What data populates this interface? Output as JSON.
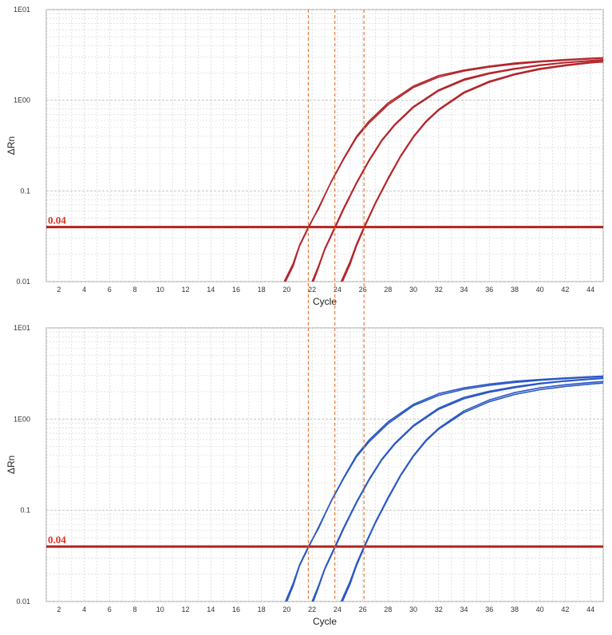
{
  "colors": {
    "threshold": "#b22222",
    "ct_marker": "#e8702a",
    "top_series": "#b3262b",
    "bottom_series": "#2a58c4",
    "grid": "#d3d3d3",
    "plot_border": "#9a9a9a"
  },
  "ct_markers": [
    21.7,
    23.8,
    26.1
  ],
  "chart_data": [
    {
      "type": "line",
      "xlabel": "Cycle",
      "ylabel": "ΔRn",
      "y_scale": "log",
      "xlim": [
        1,
        45
      ],
      "ylim": [
        0.01,
        10
      ],
      "x_ticks": [
        "2",
        "4",
        "6",
        "8",
        "10",
        "12",
        "14",
        "16",
        "18",
        "20",
        "22",
        "24",
        "26",
        "28",
        "30",
        "32",
        "34",
        "36",
        "38",
        "40",
        "42",
        "44"
      ],
      "y_ticks": [
        {
          "value": 10,
          "label": "1E01"
        },
        {
          "value": 1,
          "label": "1E00"
        },
        {
          "value": 0.1,
          "label": "0.1"
        },
        {
          "value": 0.01,
          "label": "0.01"
        }
      ],
      "threshold": {
        "value": 0.04,
        "label": "0.04"
      },
      "grid": true,
      "series_color": "#b3262b",
      "series": [
        {
          "x": [
            19.8,
            20.5,
            21.0,
            21.7,
            22.5,
            23.5,
            24.5,
            25.5,
            26.5,
            28,
            30,
            32,
            34,
            36,
            38,
            40,
            42,
            44,
            45
          ],
          "y": [
            0.01,
            0.0158,
            0.025,
            0.04,
            0.063,
            0.126,
            0.229,
            0.398,
            0.589,
            0.932,
            1.43,
            1.87,
            2.15,
            2.38,
            2.57,
            2.7,
            2.81,
            2.9,
            2.94
          ]
        },
        {
          "x": [
            19.9,
            20.5,
            21.0,
            21.75,
            22.5,
            23.5,
            24.5,
            25.5,
            26.5,
            28,
            30,
            32,
            34,
            36,
            38,
            40,
            42,
            44,
            45
          ],
          "y": [
            0.01,
            0.0148,
            0.0245,
            0.04,
            0.065,
            0.125,
            0.224,
            0.385,
            0.562,
            0.891,
            1.38,
            1.8,
            2.1,
            2.32,
            2.5,
            2.65,
            2.76,
            2.86,
            2.91
          ]
        },
        {
          "x": [
            22.0,
            22.5,
            23.0,
            23.8,
            24.5,
            25.5,
            26.5,
            27.5,
            28.5,
            30,
            32,
            34,
            36,
            38,
            40,
            42,
            44,
            45
          ],
          "y": [
            0.01,
            0.0148,
            0.023,
            0.04,
            0.065,
            0.123,
            0.219,
            0.363,
            0.537,
            0.851,
            1.3,
            1.71,
            2.0,
            2.24,
            2.45,
            2.61,
            2.74,
            2.8
          ]
        },
        {
          "x": [
            22.1,
            22.5,
            23.0,
            23.85,
            24.5,
            25.5,
            26.5,
            27.5,
            28.5,
            30,
            32,
            34,
            36,
            38,
            40,
            42,
            44,
            45
          ],
          "y": [
            0.01,
            0.0142,
            0.0225,
            0.04,
            0.063,
            0.12,
            0.214,
            0.355,
            0.525,
            0.832,
            1.27,
            1.66,
            1.96,
            2.2,
            2.42,
            2.59,
            2.72,
            2.78
          ]
        },
        {
          "x": [
            24.3,
            25.0,
            25.5,
            26.1,
            27.0,
            28.0,
            29.0,
            30.0,
            31.0,
            32,
            34,
            36,
            38,
            40,
            42,
            44,
            45
          ],
          "y": [
            0.01,
            0.0166,
            0.0257,
            0.04,
            0.0741,
            0.138,
            0.245,
            0.398,
            0.589,
            0.794,
            1.23,
            1.62,
            1.95,
            2.24,
            2.45,
            2.63,
            2.7
          ]
        },
        {
          "x": [
            24.4,
            25.0,
            25.5,
            26.15,
            27.0,
            28.0,
            29.0,
            30.0,
            31.0,
            32,
            34,
            36,
            38,
            40,
            42,
            44,
            45
          ],
          "y": [
            0.01,
            0.0155,
            0.0245,
            0.04,
            0.0724,
            0.134,
            0.24,
            0.389,
            0.575,
            0.776,
            1.2,
            1.58,
            1.91,
            2.19,
            2.4,
            2.58,
            2.65
          ]
        }
      ]
    },
    {
      "type": "line",
      "xlabel": "Cycle",
      "ylabel": "ΔRn",
      "y_scale": "log",
      "xlim": [
        1,
        45
      ],
      "ylim": [
        0.01,
        10
      ],
      "x_ticks": [
        "2",
        "4",
        "6",
        "8",
        "10",
        "12",
        "14",
        "16",
        "18",
        "20",
        "22",
        "24",
        "26",
        "28",
        "30",
        "32",
        "34",
        "36",
        "38",
        "40",
        "42",
        "44"
      ],
      "y_ticks": [
        {
          "value": 10,
          "label": "1E01"
        },
        {
          "value": 1,
          "label": "1E00"
        },
        {
          "value": 0.1,
          "label": "0.1"
        },
        {
          "value": 0.01,
          "label": "0.01"
        }
      ],
      "threshold": {
        "value": 0.04,
        "label": "0.04"
      },
      "grid": true,
      "series_color": "#2a58c4",
      "series": [
        {
          "x": [
            19.9,
            20.5,
            21.0,
            21.7,
            22.5,
            23.5,
            24.5,
            25.5,
            26.5,
            28,
            30,
            32,
            34,
            36,
            38,
            40,
            42,
            44,
            45
          ],
          "y": [
            0.01,
            0.0158,
            0.025,
            0.04,
            0.063,
            0.126,
            0.229,
            0.398,
            0.589,
            0.932,
            1.45,
            1.9,
            2.2,
            2.42,
            2.6,
            2.72,
            2.82,
            2.92,
            2.96
          ]
        },
        {
          "x": [
            20.0,
            20.5,
            21.0,
            21.75,
            22.5,
            23.5,
            24.5,
            25.5,
            26.5,
            28,
            30,
            32,
            34,
            36,
            38,
            40,
            42,
            44,
            45
          ],
          "y": [
            0.01,
            0.0148,
            0.0245,
            0.04,
            0.065,
            0.125,
            0.224,
            0.385,
            0.562,
            0.891,
            1.4,
            1.82,
            2.12,
            2.34,
            2.52,
            2.66,
            2.77,
            2.87,
            2.92
          ]
        },
        {
          "x": [
            22.0,
            22.5,
            23.0,
            23.8,
            24.5,
            25.5,
            26.5,
            27.5,
            28.5,
            30,
            32,
            34,
            36,
            38,
            40,
            42,
            44,
            45
          ],
          "y": [
            0.01,
            0.0148,
            0.023,
            0.04,
            0.065,
            0.123,
            0.219,
            0.363,
            0.537,
            0.851,
            1.32,
            1.73,
            2.02,
            2.26,
            2.47,
            2.63,
            2.76,
            2.82
          ]
        },
        {
          "x": [
            22.1,
            22.5,
            23.0,
            23.85,
            24.5,
            25.5,
            26.5,
            27.5,
            28.5,
            30,
            32,
            34,
            36,
            38,
            40,
            42,
            44,
            45
          ],
          "y": [
            0.01,
            0.0142,
            0.0225,
            0.04,
            0.063,
            0.12,
            0.214,
            0.355,
            0.525,
            0.832,
            1.28,
            1.67,
            1.97,
            2.21,
            2.43,
            2.6,
            2.73,
            2.79
          ]
        },
        {
          "x": [
            24.3,
            25.0,
            25.5,
            26.1,
            27.0,
            28.0,
            29.0,
            30.0,
            31.0,
            32,
            34,
            36,
            38,
            40,
            42,
            44,
            45
          ],
          "y": [
            0.01,
            0.0166,
            0.0257,
            0.04,
            0.0741,
            0.138,
            0.245,
            0.398,
            0.589,
            0.794,
            1.23,
            1.62,
            1.95,
            2.2,
            2.38,
            2.52,
            2.58
          ]
        },
        {
          "x": [
            24.4,
            25.0,
            25.5,
            26.15,
            27.0,
            28.0,
            29.0,
            30.0,
            31.0,
            32,
            34,
            36,
            38,
            40,
            42,
            44,
            45
          ],
          "y": [
            0.01,
            0.0155,
            0.0245,
            0.04,
            0.0724,
            0.134,
            0.24,
            0.389,
            0.575,
            0.776,
            1.18,
            1.55,
            1.86,
            2.1,
            2.28,
            2.42,
            2.48
          ]
        }
      ]
    }
  ]
}
